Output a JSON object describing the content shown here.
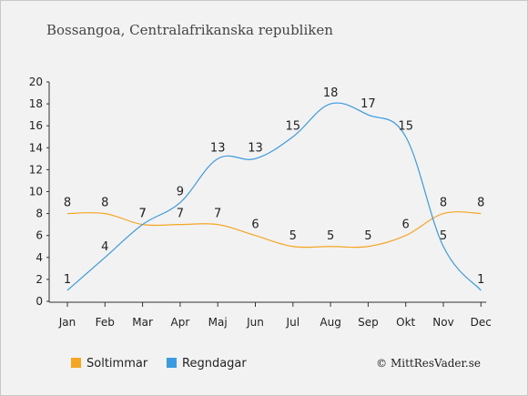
{
  "chart_data": {
    "type": "line",
    "title": "Bossangoa, Centralafrikanska republiken",
    "categories": [
      "Jan",
      "Feb",
      "Mar",
      "Apr",
      "Maj",
      "Jun",
      "Jul",
      "Aug",
      "Sep",
      "Okt",
      "Nov",
      "Dec"
    ],
    "yticks": [
      0,
      2,
      4,
      6,
      8,
      10,
      12,
      14,
      16,
      18,
      20
    ],
    "ylim": [
      0,
      20
    ],
    "grid": false,
    "legend_position": "bottom-left",
    "series": [
      {
        "name": "Soltimmar",
        "color": "#f5a623",
        "values": [
          8,
          8,
          7,
          7,
          7,
          6,
          5,
          5,
          5,
          6,
          8,
          8
        ]
      },
      {
        "name": "Regndagar",
        "color": "#3a9be0",
        "values": [
          1,
          4,
          7,
          9,
          13,
          13,
          15,
          18,
          17,
          15,
          5,
          1
        ]
      }
    ],
    "credit": "© MittResVader.se"
  }
}
